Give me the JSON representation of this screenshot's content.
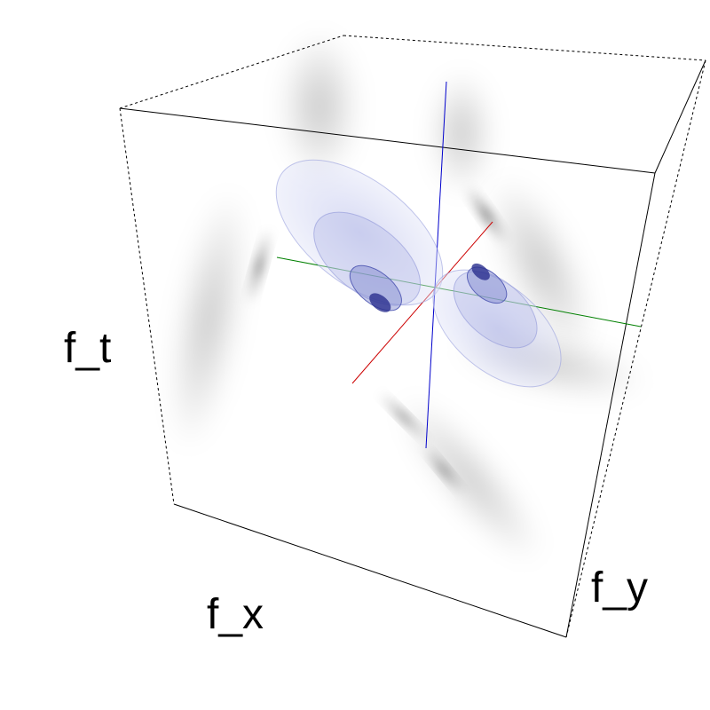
{
  "figure": {
    "axis_labels": {
      "t": "f_t",
      "x": "f_x",
      "y": "f_y"
    },
    "colors": {
      "background": "#ffffff",
      "box_edge": "#000000",
      "axis_x": "#cc0000",
      "axis_y": "#008000",
      "axis_t": "#0000cc",
      "lobe_fill": "#c8cdf0",
      "lobe_dark": "#1a1a8c",
      "shadow": "#000000"
    }
  }
}
